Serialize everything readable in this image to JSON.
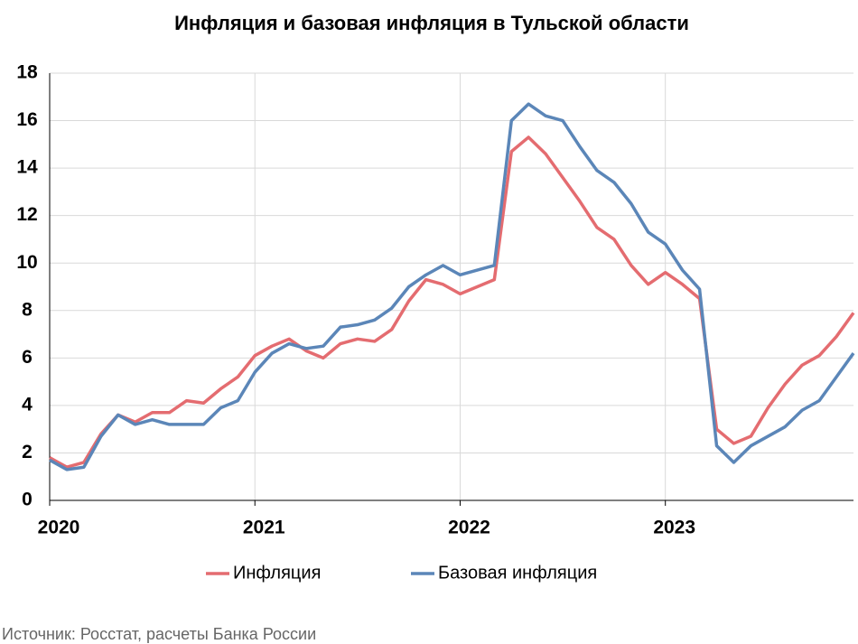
{
  "chart_data": {
    "type": "line",
    "title": "Инфляция и базовая инфляция в Тульской области",
    "categories": [
      "2020",
      null,
      null,
      null,
      null,
      null,
      null,
      null,
      null,
      null,
      null,
      null,
      "2021",
      null,
      null,
      null,
      null,
      null,
      null,
      null,
      null,
      null,
      null,
      null,
      "2022",
      null,
      null,
      null,
      null,
      null,
      null,
      null,
      null,
      null,
      null,
      null,
      "2023",
      null,
      null,
      null,
      null,
      null,
      null,
      null,
      null,
      null,
      null,
      null
    ],
    "series": [
      {
        "name": "Инфляция",
        "color": "#e46c70",
        "values": [
          1.8,
          1.4,
          1.6,
          2.8,
          3.6,
          3.3,
          3.7,
          3.7,
          4.2,
          4.1,
          4.7,
          5.2,
          6.1,
          6.5,
          6.8,
          6.3,
          6.0,
          6.6,
          6.8,
          6.7,
          7.2,
          8.4,
          9.3,
          9.1,
          8.7,
          9.0,
          9.3,
          14.7,
          15.3,
          14.6,
          13.6,
          12.6,
          11.5,
          11.0,
          9.9,
          9.1,
          9.6,
          9.1,
          8.5,
          3.0,
          2.4,
          2.7,
          3.9,
          4.9,
          5.7,
          6.1,
          6.9,
          7.9
        ]
      },
      {
        "name": "Базовая инфляция",
        "color": "#5b86b8",
        "values": [
          1.7,
          1.3,
          1.4,
          2.7,
          3.6,
          3.2,
          3.4,
          3.2,
          3.2,
          3.2,
          3.9,
          4.2,
          5.4,
          6.2,
          6.6,
          6.4,
          6.5,
          7.3,
          7.4,
          7.6,
          8.1,
          9.0,
          9.5,
          9.9,
          9.5,
          9.7,
          9.9,
          16.0,
          16.7,
          16.2,
          16.0,
          14.9,
          13.9,
          13.4,
          12.5,
          11.3,
          10.8,
          9.7,
          8.9,
          2.3,
          1.6,
          2.3,
          2.7,
          3.1,
          3.8,
          4.2,
          5.2,
          6.2
        ]
      }
    ],
    "ylim": [
      0,
      18
    ],
    "yticks": [
      0,
      2,
      4,
      6,
      8,
      10,
      12,
      14,
      16,
      18
    ],
    "grid": true,
    "legend": "bottom",
    "source": "Источник: Росстат, расчеты Банка России"
  }
}
